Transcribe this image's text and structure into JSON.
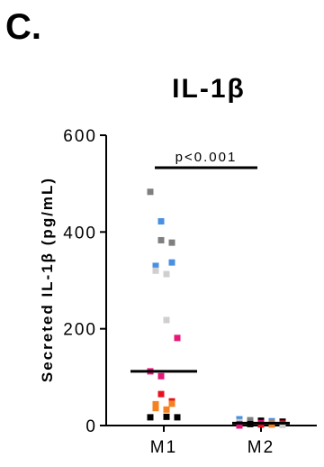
{
  "panel_label": "C.",
  "chart_data": {
    "type": "scatter",
    "title": "IL-1β",
    "xlabel": "",
    "ylabel": "Secreted IL-1β (pg/mL)",
    "categories": [
      "M1",
      "M2"
    ],
    "ylim": [
      0,
      600
    ],
    "yticks": [
      0,
      200,
      400,
      600
    ],
    "grid": false,
    "significance": {
      "label": "p<0.001",
      "between": [
        "M1",
        "M2"
      ]
    },
    "groups": [
      {
        "name": "M1",
        "median": 112,
        "points": [
          {
            "y": 483,
            "color": "#7f7f7f"
          },
          {
            "y": 422,
            "color": "#4a90e2"
          },
          {
            "y": 383,
            "color": "#7f7f7f"
          },
          {
            "y": 378,
            "color": "#7f7f7f"
          },
          {
            "y": 337,
            "color": "#4a90e2"
          },
          {
            "y": 330,
            "color": "#4a90e2"
          },
          {
            "y": 320,
            "color": "#cfcfcf"
          },
          {
            "y": 313,
            "color": "#cfcfcf"
          },
          {
            "y": 218,
            "color": "#cfcfcf"
          },
          {
            "y": 181,
            "color": "#e8157a"
          },
          {
            "y": 112,
            "color": "#e8157a"
          },
          {
            "y": 102,
            "color": "#e8157a"
          },
          {
            "y": 65,
            "color": "#e8101e"
          },
          {
            "y": 50,
            "color": "#e8101e"
          },
          {
            "y": 45,
            "color": "#f58220"
          },
          {
            "y": 44,
            "color": "#f58220"
          },
          {
            "y": 36,
            "color": "#f58220"
          },
          {
            "y": 33,
            "color": "#f58220"
          },
          {
            "y": 18,
            "color": "#000000"
          },
          {
            "y": 17,
            "color": "#000000"
          },
          {
            "y": 17,
            "color": "#000000"
          }
        ]
      },
      {
        "name": "M2",
        "median": 5,
        "points": [
          {
            "y": 13,
            "color": "#4a90e2"
          },
          {
            "y": 11,
            "color": "#7f7f7f"
          },
          {
            "y": 10,
            "color": "#000000"
          },
          {
            "y": 9,
            "color": "#4a90e2"
          },
          {
            "y": 8,
            "color": "#000000"
          },
          {
            "y": 7,
            "color": "#cfcfcf"
          },
          {
            "y": 6,
            "color": "#7f7f7f"
          },
          {
            "y": 5,
            "color": "#e8157a"
          },
          {
            "y": 4,
            "color": "#f58220"
          },
          {
            "y": 4,
            "color": "#e8101e"
          },
          {
            "y": 3,
            "color": "#e8157a"
          },
          {
            "y": 3,
            "color": "#000000"
          },
          {
            "y": 2,
            "color": "#e8101e"
          },
          {
            "y": 2,
            "color": "#f58220"
          },
          {
            "y": 1,
            "color": "#cfcfcf"
          },
          {
            "y": 0,
            "color": "#e8157a"
          }
        ]
      }
    ]
  }
}
